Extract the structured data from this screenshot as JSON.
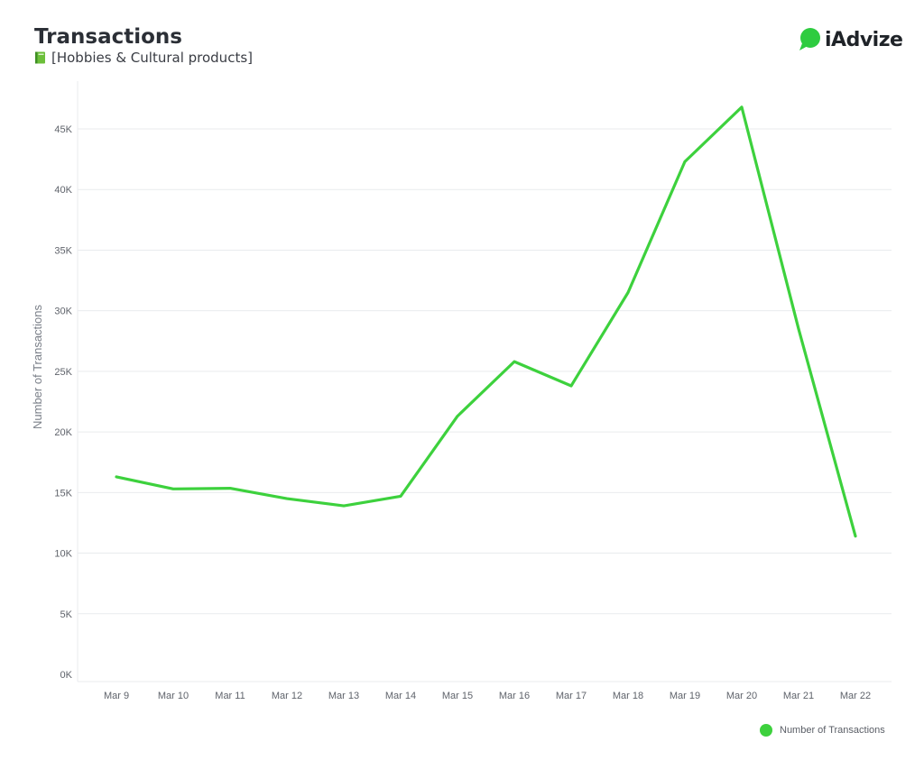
{
  "header": {
    "title": "Transactions",
    "subtitle": "[Hobbies & Cultural products]",
    "subtitle_icon": "green-book-icon"
  },
  "logo": {
    "text": "iAdvize",
    "icon": "chat-bubble-icon",
    "color": "#2ecc40"
  },
  "legend": {
    "label": "Number of Transactions",
    "placement": "bottom-right"
  },
  "colors": {
    "line": "#3dd13d",
    "grid": "#e9ebee",
    "tick": "#5f636b",
    "axis_label": "#7a7f88"
  },
  "chart_data": {
    "type": "line",
    "title": "Transactions",
    "subtitle": "[Hobbies & Cultural products]",
    "xlabel": "",
    "ylabel": "Number of Transactions",
    "categories": [
      "Mar 9",
      "Mar 10",
      "Mar 11",
      "Mar 12",
      "Mar 13",
      "Mar 14",
      "Mar 15",
      "Mar 16",
      "Mar 17",
      "Mar 18",
      "Mar 19",
      "Mar 20",
      "Mar 21",
      "Mar 22"
    ],
    "series": [
      {
        "name": "Number of Transactions",
        "values": [
          16300,
          15300,
          15350,
          14500,
          13900,
          14700,
          21300,
          25800,
          23800,
          31500,
          42300,
          46800,
          28500,
          11400
        ]
      }
    ],
    "ylim": [
      0,
      45000
    ],
    "yticks": [
      0,
      5000,
      10000,
      15000,
      20000,
      25000,
      30000,
      35000,
      40000,
      45000
    ],
    "ytick_labels": [
      "0K",
      "5K",
      "10K",
      "15K",
      "20K",
      "25K",
      "30K",
      "35K",
      "40K",
      "45K"
    ],
    "grid": true,
    "legend": "bottom-right"
  }
}
